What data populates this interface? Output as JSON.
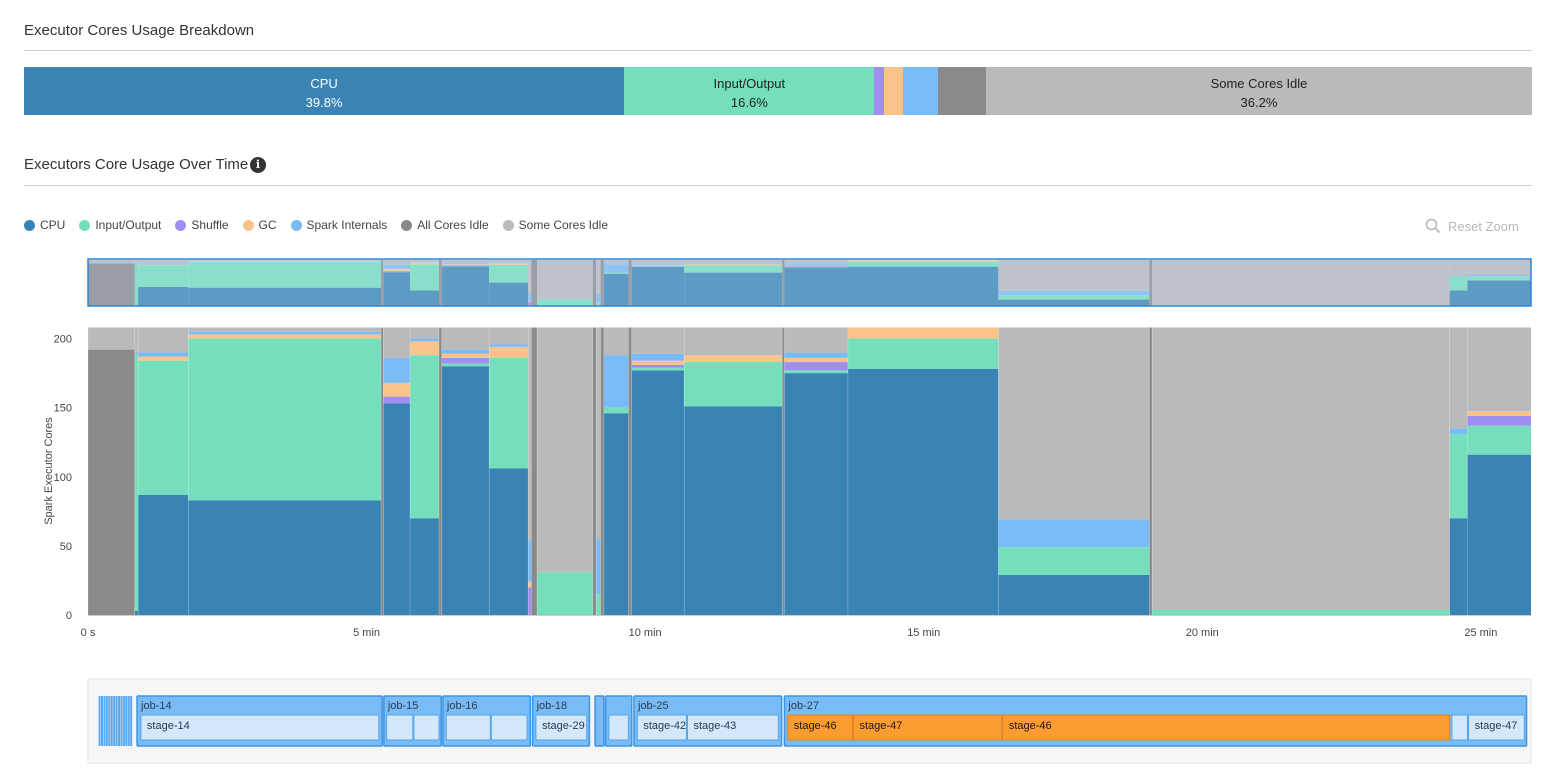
{
  "breakdown": {
    "title": "Executor Cores Usage Breakdown",
    "segments": [
      {
        "name": "CPU",
        "label": "CPU",
        "pct_text": "39.8%",
        "percent": 39.8,
        "color": "#3a83b5",
        "text_color": "#ffffff"
      },
      {
        "name": "Input/Output",
        "label": "Input/Output",
        "pct_text": "16.6%",
        "percent": 16.6,
        "color": "#75dfbd",
        "text_color": "#222222"
      },
      {
        "name": "Shuffle",
        "label": "",
        "pct_text": "",
        "percent": 0.6,
        "color": "#a08df2",
        "text_color": "#222222"
      },
      {
        "name": "GC",
        "label": "",
        "pct_text": "",
        "percent": 1.3,
        "color": "#f8c48b",
        "text_color": "#222222"
      },
      {
        "name": "Spark Internals",
        "label": "",
        "pct_text": "",
        "percent": 2.3,
        "color": "#79bbf7",
        "text_color": "#222222"
      },
      {
        "name": "All Cores Idle",
        "label": "",
        "pct_text": "",
        "percent": 3.2,
        "color": "#8a8a8a",
        "text_color": "#222222"
      },
      {
        "name": "Some Cores Idle",
        "label": "Some Cores Idle",
        "pct_text": "36.2%",
        "percent": 36.2,
        "color": "#bababa",
        "text_color": "#222222"
      }
    ]
  },
  "over_time": {
    "title": "Executors Core Usage Over Time",
    "info_icon": "info-icon",
    "reset_zoom_label": "Reset Zoom",
    "zoom_icon": "magnifier-icon",
    "legend": [
      {
        "label": "CPU",
        "color": "#3a83b5"
      },
      {
        "label": "Input/Output",
        "color": "#75dfbd"
      },
      {
        "label": "Shuffle",
        "color": "#a08df2"
      },
      {
        "label": "GC",
        "color": "#f8c48b"
      },
      {
        "label": "Spark Internals",
        "color": "#79bbf7"
      },
      {
        "label": "All Cores Idle",
        "color": "#8a8a8a"
      },
      {
        "label": "Some Cores Idle",
        "color": "#bababa"
      }
    ]
  },
  "chart_data": {
    "type": "area",
    "title": "Executors Core Usage Over Time",
    "xlabel": "",
    "ylabel": "Spark Executor Cores",
    "x_unit": "min",
    "xlim": [
      0,
      25.9
    ],
    "ylim": [
      0,
      208
    ],
    "y_ticks": [
      0,
      50,
      100,
      150,
      200
    ],
    "x_ticks": [
      {
        "value": 0,
        "label": "0 s"
      },
      {
        "value": 5,
        "label": "5 min"
      },
      {
        "value": 10,
        "label": "10 min"
      },
      {
        "value": 15,
        "label": "15 min"
      },
      {
        "value": 20,
        "label": "20 min"
      },
      {
        "value": 25,
        "label": "25 min"
      }
    ],
    "grid": false,
    "stack_order": [
      "CPU",
      "Input/Output",
      "Shuffle",
      "GC",
      "Spark Internals",
      "All Cores Idle",
      "Some Cores Idle"
    ],
    "intervals": [
      {
        "start": 0.0,
        "end": 0.84,
        "All Cores Idle": 192,
        "Some Cores Idle": 16
      },
      {
        "start": 0.84,
        "end": 0.9,
        "CPU": 3,
        "Input/Output": 186,
        "Shuffle": 1,
        "GC": 1,
        "Spark Internals": 1,
        "Some Cores Idle": 16
      },
      {
        "start": 0.9,
        "end": 1.8,
        "CPU": 87,
        "Input/Output": 97,
        "GC": 3,
        "Spark Internals": 3,
        "Some Cores Idle": 18
      },
      {
        "start": 1.8,
        "end": 5.26,
        "CPU": 83,
        "Input/Output": 117,
        "GC": 3,
        "Spark Internals": 2,
        "Some Cores Idle": 3
      },
      {
        "start": 5.26,
        "end": 5.3,
        "All Cores Idle": 208
      },
      {
        "start": 5.3,
        "end": 5.78,
        "CPU": 153,
        "Shuffle": 5,
        "GC": 10,
        "Spark Internals": 18,
        "Some Cores Idle": 22
      },
      {
        "start": 5.78,
        "end": 6.3,
        "CPU": 70,
        "Input/Output": 118,
        "GC": 10,
        "Spark Internals": 2,
        "Some Cores Idle": 8
      },
      {
        "start": 6.3,
        "end": 6.35,
        "All Cores Idle": 208
      },
      {
        "start": 6.35,
        "end": 7.2,
        "CPU": 180,
        "Input/Output": 2,
        "Shuffle": 4,
        "GC": 3,
        "Spark Internals": 3,
        "Some Cores Idle": 16
      },
      {
        "start": 7.2,
        "end": 7.9,
        "CPU": 106,
        "Input/Output": 80,
        "GC": 8,
        "Spark Internals": 2,
        "Some Cores Idle": 12
      },
      {
        "start": 7.9,
        "end": 7.96,
        "Shuffle": 20,
        "GC": 4,
        "Spark Internals": 30,
        "Some Cores Idle": 154
      },
      {
        "start": 7.96,
        "end": 8.06,
        "All Cores Idle": 208
      },
      {
        "start": 8.06,
        "end": 9.06,
        "Input/Output": 31,
        "Some Cores Idle": 177
      },
      {
        "start": 9.06,
        "end": 9.12,
        "All Cores Idle": 208
      },
      {
        "start": 9.12,
        "end": 9.2,
        "Input/Output": 15,
        "Spark Internals": 40,
        "Some Cores Idle": 153
      },
      {
        "start": 9.2,
        "end": 9.26,
        "All Cores Idle": 208
      },
      {
        "start": 9.26,
        "end": 9.7,
        "CPU": 146,
        "Input/Output": 4,
        "Spark Internals": 38,
        "Some Cores Idle": 20
      },
      {
        "start": 9.7,
        "end": 9.76,
        "All Cores Idle": 208
      },
      {
        "start": 9.76,
        "end": 10.7,
        "CPU": 177,
        "Input/Output": 2,
        "Shuffle": 2,
        "GC": 3,
        "Spark Internals": 5,
        "Some Cores Idle": 19
      },
      {
        "start": 10.7,
        "end": 12.46,
        "CPU": 151,
        "Input/Output": 32,
        "GC": 5,
        "Some Cores Idle": 20
      },
      {
        "start": 12.46,
        "end": 12.5,
        "All Cores Idle": 208
      },
      {
        "start": 12.5,
        "end": 13.64,
        "CPU": 175,
        "Input/Output": 2,
        "Shuffle": 6,
        "GC": 3,
        "Spark Internals": 4,
        "Some Cores Idle": 18
      },
      {
        "start": 13.64,
        "end": 16.34,
        "CPU": 178,
        "Input/Output": 22,
        "GC": 8,
        "Some Cores Idle": 0
      },
      {
        "start": 16.34,
        "end": 19.05,
        "CPU": 29,
        "Input/Output": 20,
        "Spark Internals": 20,
        "Some Cores Idle": 139
      },
      {
        "start": 19.05,
        "end": 19.1,
        "All Cores Idle": 208
      },
      {
        "start": 19.1,
        "end": 24.44,
        "Input/Output": 4,
        "Some Cores Idle": 204
      },
      {
        "start": 24.44,
        "end": 24.76,
        "CPU": 70,
        "Input/Output": 61,
        "Spark Internals": 4,
        "Some Cores Idle": 73
      },
      {
        "start": 24.76,
        "end": 25.9,
        "CPU": 116,
        "Input/Output": 21,
        "Shuffle": 7,
        "GC": 4,
        "Spark Internals": 1,
        "Some Cores Idle": 59
      }
    ]
  },
  "timeline": {
    "jobs": [
      {
        "label": "",
        "start": 0.19,
        "end": 0.8,
        "burst": true
      },
      {
        "label": "job-14",
        "start": 0.88,
        "end": 5.28
      },
      {
        "label": "job-15",
        "start": 5.31,
        "end": 6.34
      },
      {
        "label": "job-16",
        "start": 6.37,
        "end": 7.94
      },
      {
        "label": "job-18",
        "start": 7.98,
        "end": 9.0
      },
      {
        "label": "",
        "start": 9.1,
        "end": 9.26
      },
      {
        "label": "",
        "start": 9.29,
        "end": 9.76
      },
      {
        "label": "job-25",
        "start": 9.8,
        "end": 12.45
      },
      {
        "label": "job-27",
        "start": 12.5,
        "end": 25.82
      }
    ],
    "stages": [
      {
        "label": "stage-14",
        "start": 0.95,
        "end": 5.22,
        "active": false
      },
      {
        "label": "",
        "start": 5.36,
        "end": 5.83,
        "active": false
      },
      {
        "label": "",
        "start": 5.85,
        "end": 6.3,
        "active": false
      },
      {
        "label": "",
        "start": 6.43,
        "end": 7.22,
        "active": false
      },
      {
        "label": "",
        "start": 7.24,
        "end": 7.88,
        "active": false
      },
      {
        "label": "stage-29",
        "start": 8.04,
        "end": 8.95,
        "active": false
      },
      {
        "label": "",
        "start": 9.35,
        "end": 9.7,
        "active": false
      },
      {
        "label": "stage-42",
        "start": 9.86,
        "end": 10.74,
        "active": false
      },
      {
        "label": "stage-43",
        "start": 10.76,
        "end": 12.39,
        "active": false
      },
      {
        "label": "stage-46",
        "start": 12.56,
        "end": 13.72,
        "active": true
      },
      {
        "label": "stage-47",
        "start": 13.74,
        "end": 16.4,
        "active": true
      },
      {
        "label": "stage-46",
        "start": 16.42,
        "end": 24.44,
        "active": true
      },
      {
        "label": "",
        "start": 24.48,
        "end": 24.76,
        "active": false
      },
      {
        "label": "stage-47",
        "start": 24.78,
        "end": 25.78,
        "active": false
      }
    ]
  }
}
